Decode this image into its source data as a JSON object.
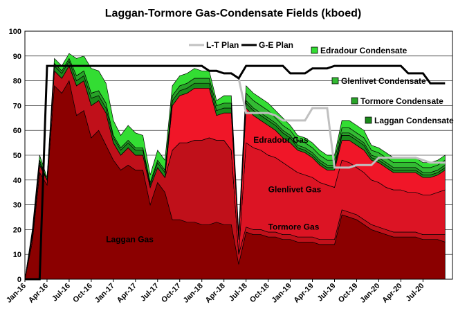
{
  "chart_data": {
    "type": "area",
    "title": "Laggan-Tormore Gas-Condensate Fields (kboed)",
    "xlabel": "",
    "ylabel": "",
    "ylim": [
      0,
      100
    ],
    "yticks": [
      0,
      10,
      20,
      30,
      40,
      50,
      60,
      70,
      80,
      90,
      100
    ],
    "xlim": [
      "2016-01",
      "2020-11"
    ],
    "xticks": [
      "Jan-16",
      "Apr-16",
      "Jul-16",
      "Oct-16",
      "Jan-17",
      "Apr-17",
      "Jul-17",
      "Oct-17",
      "Jan-18",
      "Apr-18",
      "Jul-18",
      "Oct-18",
      "Jan-19",
      "Apr-19",
      "Jul-19",
      "Oct-19",
      "Jan-20",
      "Apr-20",
      "Jul-20"
    ],
    "grid": true,
    "legend_position": "top-right",
    "x": [
      "2016-01",
      "2016-02",
      "2016-03",
      "2016-04",
      "2016-05",
      "2016-06",
      "2016-07",
      "2016-08",
      "2016-09",
      "2016-10",
      "2016-11",
      "2016-12",
      "2017-01",
      "2017-02",
      "2017-03",
      "2017-04",
      "2017-05",
      "2017-06",
      "2017-07",
      "2017-08",
      "2017-09",
      "2017-10",
      "2017-11",
      "2017-12",
      "2018-01",
      "2018-02",
      "2018-03",
      "2018-04",
      "2018-05",
      "2018-06",
      "2018-07",
      "2018-08",
      "2018-09",
      "2018-10",
      "2018-11",
      "2018-12",
      "2019-01",
      "2019-02",
      "2019-03",
      "2019-04",
      "2019-05",
      "2019-06",
      "2019-07",
      "2019-08",
      "2019-09",
      "2019-10",
      "2019-11",
      "2019-12",
      "2020-01",
      "2020-02",
      "2020-03",
      "2020-04",
      "2020-05",
      "2020-06",
      "2020-07",
      "2020-08",
      "2020-09",
      "2020-10"
    ],
    "series": [
      {
        "name": "Laggan Gas",
        "color": "#8b0000",
        "label_x": "2016-12",
        "label_y": 15,
        "values": [
          0,
          15,
          43,
          38,
          78,
          75,
          80,
          66,
          68,
          57,
          60,
          54,
          48,
          44,
          46,
          44,
          44,
          30,
          39,
          35,
          24,
          24,
          23,
          23,
          22,
          22,
          23,
          22,
          22,
          6,
          19,
          18,
          18,
          17,
          17,
          16,
          16,
          15,
          15,
          15,
          14,
          14,
          14,
          26,
          25,
          24,
          22,
          20,
          19,
          18,
          17,
          17,
          17,
          17,
          16,
          16,
          16,
          15
        ]
      },
      {
        "name": "Tormore Gas",
        "color": "#c0101a",
        "label_x": "2018-10",
        "label_y": 20,
        "values": [
          0,
          2,
          3,
          2,
          6,
          6,
          6,
          12,
          12,
          13,
          12,
          13,
          7,
          6,
          7,
          6,
          6,
          7,
          6,
          6,
          28,
          31,
          32,
          33,
          34,
          35,
          33,
          34,
          30,
          4,
          2,
          2,
          2,
          2,
          2,
          2,
          2,
          2,
          2,
          2,
          2,
          2,
          2,
          2,
          2,
          2,
          2,
          2,
          2,
          2,
          2,
          2,
          2,
          2,
          2,
          2,
          2,
          3
        ]
      },
      {
        "name": "Glenlivet Gas",
        "color": "#dc1424",
        "label_x": "2018-10",
        "label_y": 35,
        "values": [
          0,
          0,
          0,
          0,
          0,
          0,
          0,
          0,
          0,
          0,
          0,
          0,
          0,
          0,
          0,
          0,
          0,
          0,
          0,
          0,
          0,
          0,
          0,
          0,
          0,
          0,
          0,
          0,
          0,
          0,
          34,
          33,
          32,
          31,
          30,
          29,
          27,
          26,
          25,
          24,
          23,
          22,
          21,
          20,
          20,
          19,
          19,
          18,
          18,
          17,
          17,
          17,
          16,
          16,
          16,
          16,
          17,
          18
        ]
      },
      {
        "name": "Edradour Gas",
        "color": "#f01628",
        "label_x": "2018-08",
        "label_y": 55,
        "values": [
          0,
          0,
          0,
          0,
          0,
          0,
          0,
          0,
          0,
          0,
          0,
          0,
          0,
          0,
          0,
          0,
          0,
          0,
          0,
          0,
          18,
          19,
          20,
          21,
          21,
          20,
          10,
          11,
          15,
          6,
          14,
          13,
          12,
          12,
          11,
          10,
          10,
          9,
          9,
          8,
          7,
          6,
          7,
          8,
          9,
          9,
          9,
          8,
          8,
          8,
          7,
          7,
          8,
          8,
          7,
          7,
          7,
          8
        ]
      },
      {
        "name": "Laggan Condensate",
        "color": "#1a8a1a",
        "label_x": "",
        "label_y": 0,
        "values": [
          0,
          1,
          1,
          0,
          2,
          2,
          2,
          2,
          2,
          3,
          2,
          2,
          2,
          2,
          2,
          2,
          2,
          1,
          2,
          2,
          2,
          2,
          2,
          2,
          2,
          2,
          2,
          2,
          2,
          1,
          2,
          2,
          2,
          2,
          2,
          2,
          2,
          1,
          1,
          1,
          1,
          1,
          1,
          2,
          2,
          2,
          2,
          1,
          1,
          1,
          1,
          1,
          1,
          1,
          1,
          1,
          1,
          1
        ]
      },
      {
        "name": "Tormore Condensate",
        "color": "#28a428",
        "label_x": "",
        "label_y": 0,
        "values": [
          0,
          1,
          1,
          0,
          1,
          1,
          1,
          2,
          2,
          2,
          2,
          2,
          1,
          1,
          1,
          1,
          1,
          1,
          1,
          1,
          2,
          2,
          2,
          2,
          2,
          2,
          2,
          2,
          2,
          1,
          1,
          1,
          1,
          1,
          1,
          1,
          1,
          1,
          1,
          1,
          1,
          1,
          1,
          1,
          1,
          1,
          1,
          1,
          1,
          1,
          1,
          1,
          1,
          1,
          1,
          1,
          1,
          1
        ]
      },
      {
        "name": "Glenlivet Condensate",
        "color": "#33bb33",
        "label_x": "",
        "label_y": 0,
        "values": [
          0,
          0,
          0,
          0,
          0,
          0,
          0,
          0,
          0,
          0,
          0,
          0,
          0,
          0,
          0,
          0,
          0,
          0,
          0,
          0,
          0,
          0,
          0,
          0,
          0,
          0,
          0,
          0,
          0,
          0,
          3,
          3,
          3,
          3,
          2,
          2,
          2,
          2,
          2,
          2,
          2,
          2,
          2,
          2,
          2,
          2,
          2,
          2,
          2,
          2,
          2,
          2,
          2,
          2,
          2,
          2,
          2,
          2
        ]
      },
      {
        "name": "Edradour Condensate",
        "color": "#33dd33",
        "label_x": "",
        "label_y": 0,
        "values": [
          0,
          1,
          2,
          1,
          2,
          2,
          2,
          7,
          6,
          10,
          8,
          8,
          6,
          5,
          6,
          6,
          5,
          3,
          4,
          4,
          4,
          4,
          4,
          4,
          3,
          3,
          2,
          3,
          3,
          1,
          3,
          3,
          3,
          3,
          3,
          3,
          2,
          2,
          2,
          2,
          2,
          2,
          2,
          3,
          3,
          3,
          3,
          2,
          2,
          2,
          2,
          2,
          2,
          2,
          2,
          2,
          2,
          2
        ]
      }
    ],
    "lines": [
      {
        "name": "L-T Plan",
        "color": "#c0c0c0",
        "values": [
          null,
          null,
          null,
          null,
          null,
          null,
          null,
          null,
          null,
          null,
          null,
          null,
          null,
          null,
          null,
          null,
          null,
          null,
          null,
          null,
          null,
          null,
          null,
          null,
          null,
          null,
          null,
          null,
          null,
          81,
          67,
          67,
          67,
          67,
          66,
          64,
          64,
          64,
          64,
          69,
          69,
          69,
          45,
          45,
          45,
          46,
          46,
          46,
          49,
          49,
          49,
          49,
          49,
          49,
          48,
          47,
          47,
          47
        ]
      },
      {
        "name": "G-E Plan",
        "color": "#000000",
        "values": [
          0,
          0,
          0,
          86,
          86,
          86,
          86,
          86,
          86,
          86,
          86,
          86,
          86,
          86,
          86,
          86,
          86,
          86,
          86,
          86,
          86,
          86,
          86,
          86,
          86,
          84,
          84,
          83,
          83,
          81,
          86,
          86,
          86,
          86,
          86,
          86,
          83,
          83,
          83,
          85,
          85,
          85,
          86,
          86,
          86,
          86,
          86,
          86,
          86,
          86,
          86,
          86,
          83,
          83,
          83,
          79,
          79,
          79
        ]
      }
    ],
    "legend": {
      "lines": [
        "L-T Plan",
        "G-E Plan"
      ],
      "areas": [
        "Edradour Condensate",
        "Glenlivet Condensate",
        "Tormore Condensate",
        "Laggan Condensate"
      ]
    }
  }
}
